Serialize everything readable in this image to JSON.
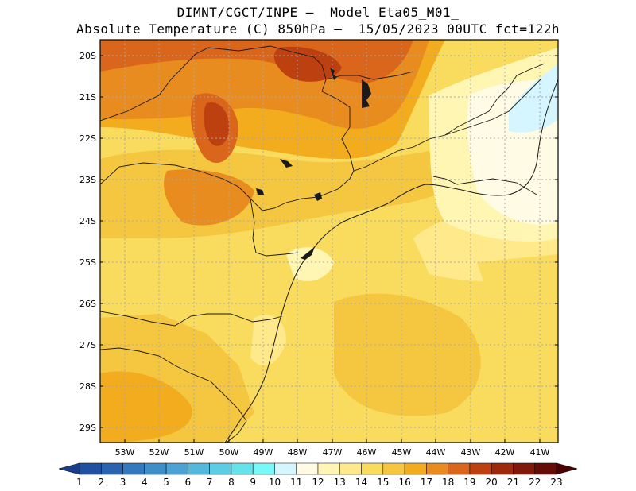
{
  "header": {
    "line1": "DIMNT/CGCT/INPE –  Model Eta05_M01_",
    "line2": "Absolute Temperature (C) 850hPa –  15/05/2023 00UTC fct=122h"
  },
  "map": {
    "lat_labels": [
      "20S",
      "21S",
      "22S",
      "23S",
      "24S",
      "25S",
      "26S",
      "27S",
      "28S",
      "29S"
    ],
    "lon_labels": [
      "53W",
      "52W",
      "51W",
      "50W",
      "49W",
      "48W",
      "47W",
      "46W",
      "45W",
      "44W",
      "43W",
      "42W",
      "41W"
    ],
    "lat_range": [
      -29.5,
      -19.8
    ],
    "lon_range": [
      -53.8,
      -40.5
    ],
    "grid": true,
    "projection": "lat-lon"
  },
  "colorbar": {
    "labels": [
      "1",
      "2",
      "3",
      "4",
      "5",
      "6",
      "7",
      "8",
      "9",
      "10",
      "11",
      "12",
      "13",
      "14",
      "15",
      "16",
      "17",
      "18",
      "19",
      "20",
      "21",
      "22",
      "23"
    ],
    "colors": [
      "#1a3c8c",
      "#2050a0",
      "#2a64b0",
      "#3479be",
      "#3e8ec8",
      "#4aa3d4",
      "#53b8dc",
      "#5ccde4",
      "#66e2ea",
      "#7af7f7",
      "#d6f6ff",
      "#fffbe4",
      "#fff6b4",
      "#ffe98a",
      "#f9dc5e",
      "#f5c740",
      "#f2ac1e",
      "#e98c20",
      "#d9661a",
      "#bd4010",
      "#9e2a0c",
      "#82180a",
      "#660c06",
      "#4c0000"
    ]
  }
}
